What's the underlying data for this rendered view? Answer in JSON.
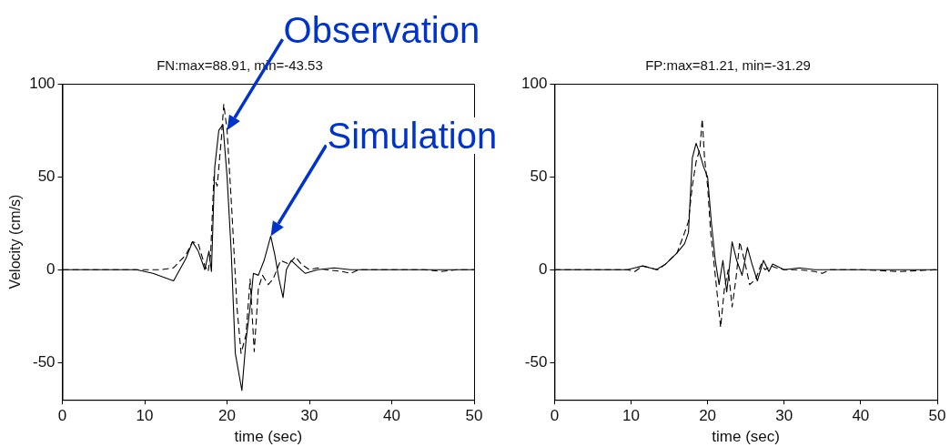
{
  "chart_data": [
    {
      "type": "line",
      "title": "FN:max=88.91, min=-43.53",
      "xlabel": "time (sec)",
      "ylabel": "Velocity (cm/s)",
      "xlim": [
        0,
        50
      ],
      "ylim": [
        -70,
        100
      ],
      "xticks": [
        0,
        10,
        20,
        30,
        40,
        50
      ],
      "yticks": [
        -50,
        0,
        50,
        100
      ],
      "grid": false,
      "legend": false,
      "marker": "none",
      "series": [
        {
          "color": "#000000",
          "line_style": "dashed",
          "x": [
            0,
            12,
            13.5,
            15,
            15.8,
            16.5,
            17.3,
            17.7,
            18,
            18.4,
            18.8,
            19.3,
            19.6,
            20,
            20.6,
            21.2,
            21.7,
            22.3,
            22.8,
            23.3,
            23.8,
            24.3,
            25,
            25.6,
            26.5,
            27.5,
            28.3,
            29,
            30,
            31,
            32,
            34,
            35,
            36,
            38,
            40,
            42,
            44,
            46,
            48,
            50
          ],
          "values": [
            0,
            0,
            1,
            8,
            15,
            14,
            2,
            -1,
            8,
            50,
            45,
            70,
            89,
            75,
            30,
            -20,
            -45,
            -35,
            -5,
            -44,
            -10,
            -3,
            -8,
            -5,
            5,
            3,
            7,
            3,
            0,
            1,
            0,
            -1,
            -2,
            0,
            0,
            0,
            0,
            0,
            -1,
            0,
            0
          ]
        },
        {
          "color": "#000000",
          "line_style": "solid",
          "x": [
            0,
            9,
            11,
            13.5,
            15,
            15.8,
            16.5,
            17.3,
            17.8,
            18.1,
            18.5,
            19,
            19.5,
            20,
            20.5,
            21,
            21.8,
            22.3,
            22.8,
            23.2,
            23.8,
            24.5,
            25.3,
            25.8,
            26.3,
            26.8,
            27.2,
            27.8,
            28.5,
            29.5,
            31,
            33,
            35,
            37,
            40,
            45,
            50
          ],
          "values": [
            0,
            0,
            -2,
            -6,
            6,
            15,
            10,
            0,
            10,
            -1,
            55,
            75,
            78,
            50,
            10,
            -45,
            -65,
            -38,
            -20,
            -2,
            -3,
            5,
            18,
            8,
            -5,
            -15,
            0,
            5,
            2,
            -2,
            0,
            1,
            0,
            0,
            0,
            0,
            0
          ]
        }
      ],
      "annotations": [
        {
          "text": "Observation",
          "x": 20,
          "y": 75
        },
        {
          "text": "Simulation",
          "x": 25.3,
          "y": 18
        }
      ]
    },
    {
      "type": "line",
      "title": "FP:max=81.21, min=-31.29",
      "xlabel": "time (sec)",
      "xlim": [
        0,
        50
      ],
      "ylim": [
        -70,
        100
      ],
      "xticks": [
        0,
        10,
        20,
        30,
        40,
        50
      ],
      "yticks": [
        -50,
        0,
        50,
        100
      ],
      "grid": false,
      "legend": false,
      "marker": "none",
      "series": [
        {
          "color": "#000000",
          "line_style": "dashed",
          "x": [
            0,
            9.5,
            10.5,
            11.5,
            12.5,
            13.5,
            14.5,
            16,
            17,
            17.5,
            18,
            18.5,
            19,
            19.3,
            19.6,
            20,
            20.4,
            20.8,
            21.3,
            21.7,
            22.2,
            22.7,
            23.2,
            23.7,
            24.2,
            24.8,
            25.5,
            26.3,
            27,
            27.5,
            28.3,
            29,
            30,
            32,
            34,
            35,
            36,
            40,
            45,
            50
          ],
          "values": [
            0,
            0,
            -1,
            2,
            1,
            0,
            3,
            9,
            20,
            26,
            45,
            58,
            65,
            81,
            60,
            45,
            20,
            5,
            -15,
            -31,
            -10,
            0,
            -20,
            -5,
            15,
            5,
            -8,
            -5,
            3,
            0,
            2,
            1,
            0,
            0,
            -1,
            -2,
            0,
            0,
            -1,
            0
          ]
        },
        {
          "color": "#000000",
          "line_style": "solid",
          "x": [
            0,
            9.5,
            10.5,
            11.5,
            12.5,
            13.3,
            14.5,
            16,
            17,
            17.5,
            18,
            18.5,
            19,
            19.5,
            20,
            20.5,
            21,
            21.5,
            22,
            22.5,
            23.2,
            23.8,
            24.5,
            25.2,
            25.8,
            26.5,
            27.3,
            28,
            28.5,
            30,
            32,
            34,
            38,
            42,
            46,
            50
          ],
          "values": [
            0,
            0,
            1,
            2,
            1,
            0,
            3,
            9,
            14,
            20,
            60,
            68,
            62,
            55,
            50,
            25,
            5,
            -8,
            5,
            -12,
            15,
            5,
            -3,
            12,
            3,
            -6,
            5,
            -1,
            3,
            0,
            1,
            0,
            0,
            0,
            0,
            0
          ]
        }
      ]
    }
  ]
}
